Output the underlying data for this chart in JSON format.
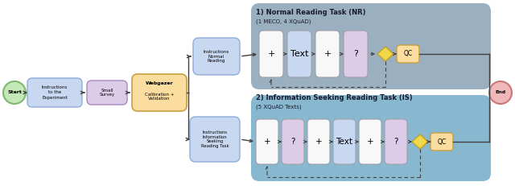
{
  "fig_width": 6.4,
  "fig_height": 2.31,
  "dpi": 100,
  "bg_color": "#ffffff",
  "colors": {
    "green_fill": "#c5e8b8",
    "green_edge": "#80b870",
    "blue_fill": "#c8d8f0",
    "blue_edge": "#90acd8",
    "purple_fill": "#dccce8",
    "purple_edge": "#a888c0",
    "orange_fill": "#fcdda0",
    "orange_edge": "#c8a040",
    "white_fill": "#f8f8f8",
    "white_edge": "#b0b0b0",
    "pink_fill": "#f0b8b8",
    "pink_edge": "#c87878",
    "yellow_fill": "#f0d848",
    "yellow_edge": "#c0a028",
    "nr_bg": "#9aafc0",
    "is_bg": "#88b8d0",
    "card_edge": "#a0a0a8",
    "arrow_color": "#404040"
  },
  "start_label": "Start",
  "end_label": "End",
  "instructions_exp": "Instructions\nto the\nExperiment",
  "small_survey": "Small\nSurvey",
  "webgazer_bold": "Webgazer",
  "webgazer_rest": "Calibration +\nValidation",
  "instr_nr": "Instructions\nNormal\nReading",
  "instr_is": "Instructions\nInformation\nSeeking\nReading Task",
  "nr_title": "1) Normal Reading Task (NR)",
  "nr_subtitle": "(1 MECO, 4 XQuAD)",
  "is_title": "2) Information Seeking Reading Task (IS)",
  "is_subtitle": "(5 XQuAD Texts)",
  "qc_label": "QC",
  "nr_cards_labels": [
    "+",
    "Text",
    "+",
    "?"
  ],
  "nr_cards_colors": [
    "white_fill",
    "blue_fill",
    "white_fill",
    "purple_fill"
  ],
  "is_cards_labels": [
    "+",
    "?",
    "+",
    "Text",
    "+",
    "?"
  ],
  "is_cards_colors": [
    "white_fill",
    "purple_fill",
    "white_fill",
    "blue_fill",
    "white_fill",
    "purple_fill"
  ]
}
